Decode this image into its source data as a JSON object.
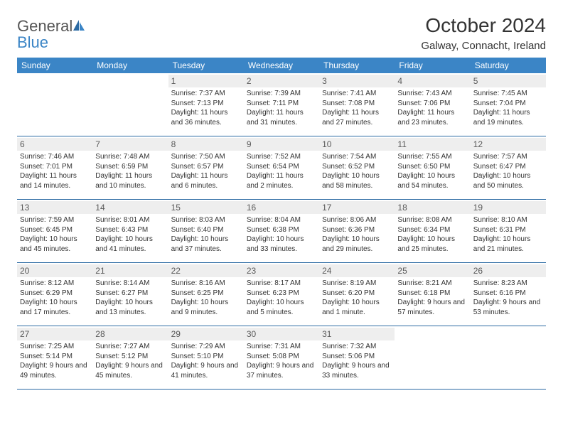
{
  "logo": {
    "text_general": "General",
    "text_blue": "Blue"
  },
  "title": "October 2024",
  "location": "Galway, Connacht, Ireland",
  "colors": {
    "header_bg": "#3b85c6",
    "row_border": "#2b6aa3",
    "daynum_bg": "#eeeeee",
    "page_bg": "#ffffff"
  },
  "weekdays": [
    "Sunday",
    "Monday",
    "Tuesday",
    "Wednesday",
    "Thursday",
    "Friday",
    "Saturday"
  ],
  "weeks": [
    [
      null,
      null,
      {
        "n": "1",
        "sunrise": "7:37 AM",
        "sunset": "7:13 PM",
        "daylight": "11 hours and 36 minutes."
      },
      {
        "n": "2",
        "sunrise": "7:39 AM",
        "sunset": "7:11 PM",
        "daylight": "11 hours and 31 minutes."
      },
      {
        "n": "3",
        "sunrise": "7:41 AM",
        "sunset": "7:08 PM",
        "daylight": "11 hours and 27 minutes."
      },
      {
        "n": "4",
        "sunrise": "7:43 AM",
        "sunset": "7:06 PM",
        "daylight": "11 hours and 23 minutes."
      },
      {
        "n": "5",
        "sunrise": "7:45 AM",
        "sunset": "7:04 PM",
        "daylight": "11 hours and 19 minutes."
      }
    ],
    [
      {
        "n": "6",
        "sunrise": "7:46 AM",
        "sunset": "7:01 PM",
        "daylight": "11 hours and 14 minutes."
      },
      {
        "n": "7",
        "sunrise": "7:48 AM",
        "sunset": "6:59 PM",
        "daylight": "11 hours and 10 minutes."
      },
      {
        "n": "8",
        "sunrise": "7:50 AM",
        "sunset": "6:57 PM",
        "daylight": "11 hours and 6 minutes."
      },
      {
        "n": "9",
        "sunrise": "7:52 AM",
        "sunset": "6:54 PM",
        "daylight": "11 hours and 2 minutes."
      },
      {
        "n": "10",
        "sunrise": "7:54 AM",
        "sunset": "6:52 PM",
        "daylight": "10 hours and 58 minutes."
      },
      {
        "n": "11",
        "sunrise": "7:55 AM",
        "sunset": "6:50 PM",
        "daylight": "10 hours and 54 minutes."
      },
      {
        "n": "12",
        "sunrise": "7:57 AM",
        "sunset": "6:47 PM",
        "daylight": "10 hours and 50 minutes."
      }
    ],
    [
      {
        "n": "13",
        "sunrise": "7:59 AM",
        "sunset": "6:45 PM",
        "daylight": "10 hours and 45 minutes."
      },
      {
        "n": "14",
        "sunrise": "8:01 AM",
        "sunset": "6:43 PM",
        "daylight": "10 hours and 41 minutes."
      },
      {
        "n": "15",
        "sunrise": "8:03 AM",
        "sunset": "6:40 PM",
        "daylight": "10 hours and 37 minutes."
      },
      {
        "n": "16",
        "sunrise": "8:04 AM",
        "sunset": "6:38 PM",
        "daylight": "10 hours and 33 minutes."
      },
      {
        "n": "17",
        "sunrise": "8:06 AM",
        "sunset": "6:36 PM",
        "daylight": "10 hours and 29 minutes."
      },
      {
        "n": "18",
        "sunrise": "8:08 AM",
        "sunset": "6:34 PM",
        "daylight": "10 hours and 25 minutes."
      },
      {
        "n": "19",
        "sunrise": "8:10 AM",
        "sunset": "6:31 PM",
        "daylight": "10 hours and 21 minutes."
      }
    ],
    [
      {
        "n": "20",
        "sunrise": "8:12 AM",
        "sunset": "6:29 PM",
        "daylight": "10 hours and 17 minutes."
      },
      {
        "n": "21",
        "sunrise": "8:14 AM",
        "sunset": "6:27 PM",
        "daylight": "10 hours and 13 minutes."
      },
      {
        "n": "22",
        "sunrise": "8:16 AM",
        "sunset": "6:25 PM",
        "daylight": "10 hours and 9 minutes."
      },
      {
        "n": "23",
        "sunrise": "8:17 AM",
        "sunset": "6:23 PM",
        "daylight": "10 hours and 5 minutes."
      },
      {
        "n": "24",
        "sunrise": "8:19 AM",
        "sunset": "6:20 PM",
        "daylight": "10 hours and 1 minute."
      },
      {
        "n": "25",
        "sunrise": "8:21 AM",
        "sunset": "6:18 PM",
        "daylight": "9 hours and 57 minutes."
      },
      {
        "n": "26",
        "sunrise": "8:23 AM",
        "sunset": "6:16 PM",
        "daylight": "9 hours and 53 minutes."
      }
    ],
    [
      {
        "n": "27",
        "sunrise": "7:25 AM",
        "sunset": "5:14 PM",
        "daylight": "9 hours and 49 minutes."
      },
      {
        "n": "28",
        "sunrise": "7:27 AM",
        "sunset": "5:12 PM",
        "daylight": "9 hours and 45 minutes."
      },
      {
        "n": "29",
        "sunrise": "7:29 AM",
        "sunset": "5:10 PM",
        "daylight": "9 hours and 41 minutes."
      },
      {
        "n": "30",
        "sunrise": "7:31 AM",
        "sunset": "5:08 PM",
        "daylight": "9 hours and 37 minutes."
      },
      {
        "n": "31",
        "sunrise": "7:32 AM",
        "sunset": "5:06 PM",
        "daylight": "9 hours and 33 minutes."
      },
      null,
      null
    ]
  ]
}
